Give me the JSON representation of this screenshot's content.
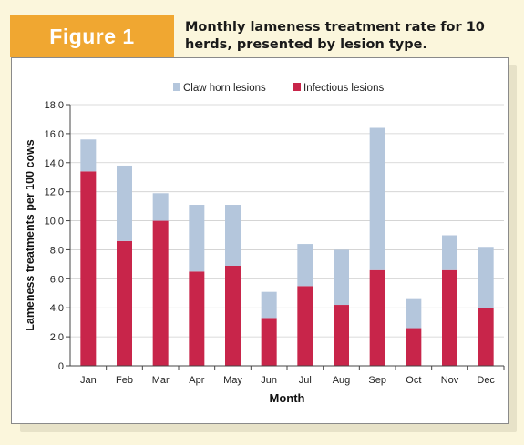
{
  "figure": {
    "label": "Figure 1",
    "title": "Monthly lameness treatment rate for 10 herds, presented by lesion type."
  },
  "colors": {
    "claw_horn": "#b4c6dc",
    "infectious": "#c8254a",
    "tag": "#f0a731"
  },
  "chart_data": {
    "type": "bar",
    "stacked": true,
    "categories": [
      "Jan",
      "Feb",
      "Mar",
      "Apr",
      "May",
      "Jun",
      "Jul",
      "Aug",
      "Sep",
      "Oct",
      "Nov",
      "Dec"
    ],
    "series": [
      {
        "name": "Infectious lesions",
        "values": [
          13.4,
          8.6,
          10.0,
          6.5,
          6.9,
          3.3,
          5.5,
          4.2,
          6.6,
          2.6,
          6.6,
          4.0
        ]
      },
      {
        "name": "Claw horn lesions",
        "values": [
          2.2,
          5.2,
          1.9,
          4.6,
          4.2,
          1.8,
          2.9,
          3.8,
          9.8,
          2.0,
          2.4,
          4.2
        ]
      }
    ],
    "legend": [
      "Claw horn lesions",
      "Infectious lesions"
    ],
    "legend_position": "top",
    "xlabel": "Month",
    "ylabel": "Lameness treatments per 100 cows",
    "ylim": [
      0,
      18
    ],
    "yticks": [
      "0",
      "2.0",
      "4.0",
      "6.0",
      "8.0",
      "10.0",
      "12.0",
      "14.0",
      "16.0",
      "18.0"
    ],
    "grid": true
  }
}
